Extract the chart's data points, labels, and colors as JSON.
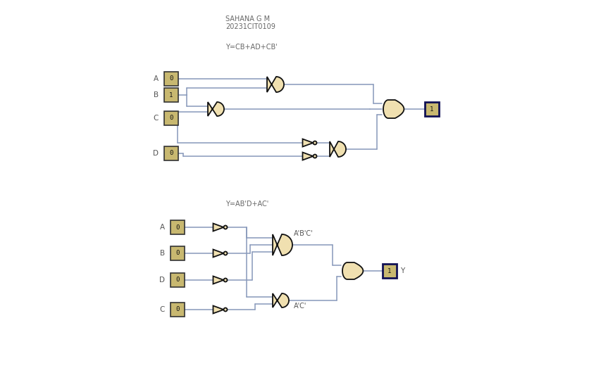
{
  "title_line1": "SAHANA G M",
  "title_line2": "20231CIT0109",
  "formula1": "Y=CB+AD+CB'",
  "formula2": "Y=AB'D+AC'",
  "bg_color": "#ffffff",
  "wire_color": "#8899bb",
  "gate_fill": "#f0e0b0",
  "gate_edge": "#111111",
  "input_fill": "#c8b870",
  "input_edge": "#333333",
  "output_fill": "#c8b870",
  "output_edge": "#111155",
  "text_color": "#666666",
  "label_color": "#555555",
  "input_vals_c1": [
    "0",
    "1",
    "0",
    "0"
  ],
  "input_vals_c2": [
    "0",
    "0",
    "0",
    "0"
  ],
  "label1_c2": "A'B'C'",
  "label2_c2": "A'C'",
  "output_val_c1": "1",
  "output_val_c2": "1",
  "output_label_c2": "Y"
}
